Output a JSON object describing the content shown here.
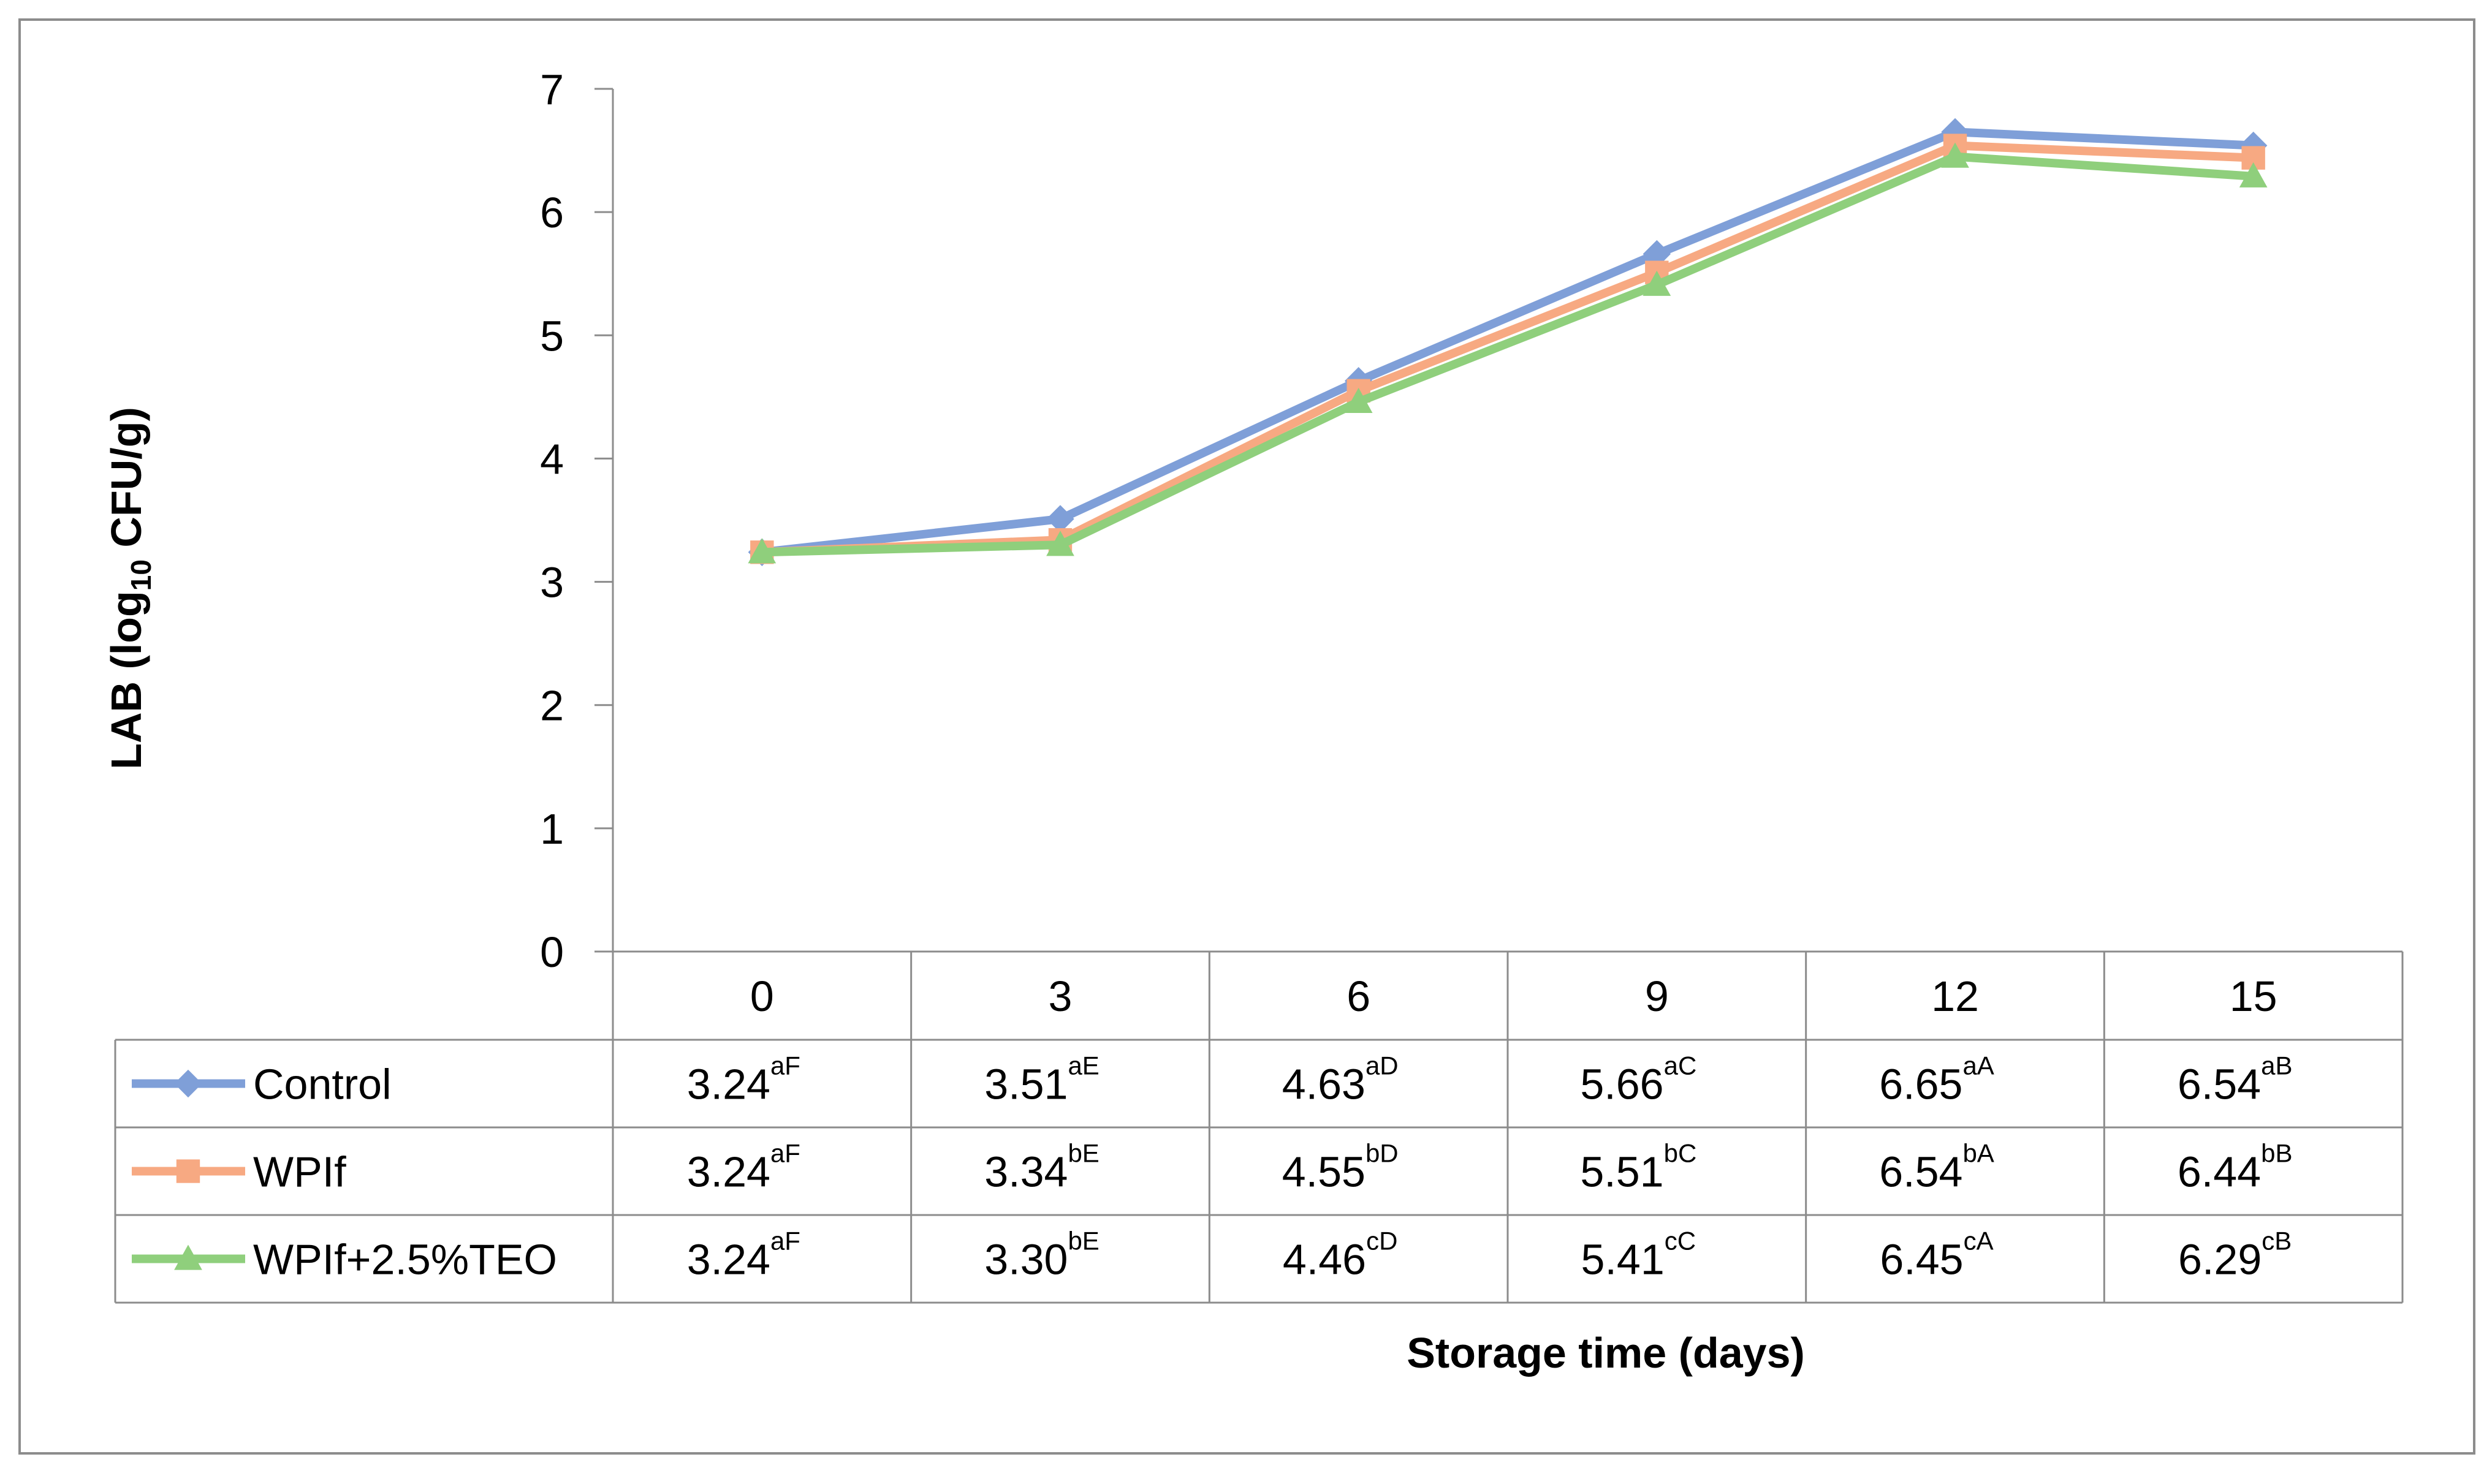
{
  "chart_data": {
    "type": "line",
    "xlabel": "Storage time (days)",
    "ylabel_main": "LAB (log",
    "ylabel_sub": "10",
    "ylabel_end": " CFU/g)",
    "ylim": [
      0,
      7
    ],
    "yticks": [
      "0",
      "1",
      "2",
      "3",
      "4",
      "5",
      "6",
      "7"
    ],
    "categories": [
      "0",
      "3",
      "6",
      "9",
      "12",
      "15"
    ],
    "grid": false,
    "legend_placement": "data-table",
    "series": [
      {
        "name": "Control",
        "marker": "diamond",
        "color": "#7f9fd8",
        "values": [
          3.24,
          3.51,
          4.63,
          5.66,
          6.65,
          6.54
        ],
        "labels": [
          "3.24",
          "3.51",
          "4.63",
          "5.66",
          "6.65",
          "6.54"
        ],
        "sups": [
          "aF",
          "aE",
          "aD",
          "aC",
          "aA",
          "aB"
        ]
      },
      {
        "name": "WPIf",
        "marker": "square",
        "color": "#f7a982",
        "values": [
          3.24,
          3.34,
          4.55,
          5.51,
          6.54,
          6.44
        ],
        "labels": [
          "3.24",
          "3.34",
          "4.55",
          "5.51",
          "6.54",
          "6.44"
        ],
        "sups": [
          "aF",
          "bE",
          "bD",
          "bC",
          "bA",
          "bB"
        ]
      },
      {
        "name": "WPIf+2.5%TEO",
        "marker": "triangle",
        "color": "#8fcf7c",
        "values": [
          3.24,
          3.3,
          4.46,
          5.41,
          6.45,
          6.29
        ],
        "labels": [
          "3.24",
          "3.30",
          "4.46",
          "5.41",
          "6.45",
          "6.29"
        ],
        "sups": [
          "aF",
          "bE",
          "cD",
          "cC",
          "cA",
          "cB"
        ]
      }
    ]
  }
}
